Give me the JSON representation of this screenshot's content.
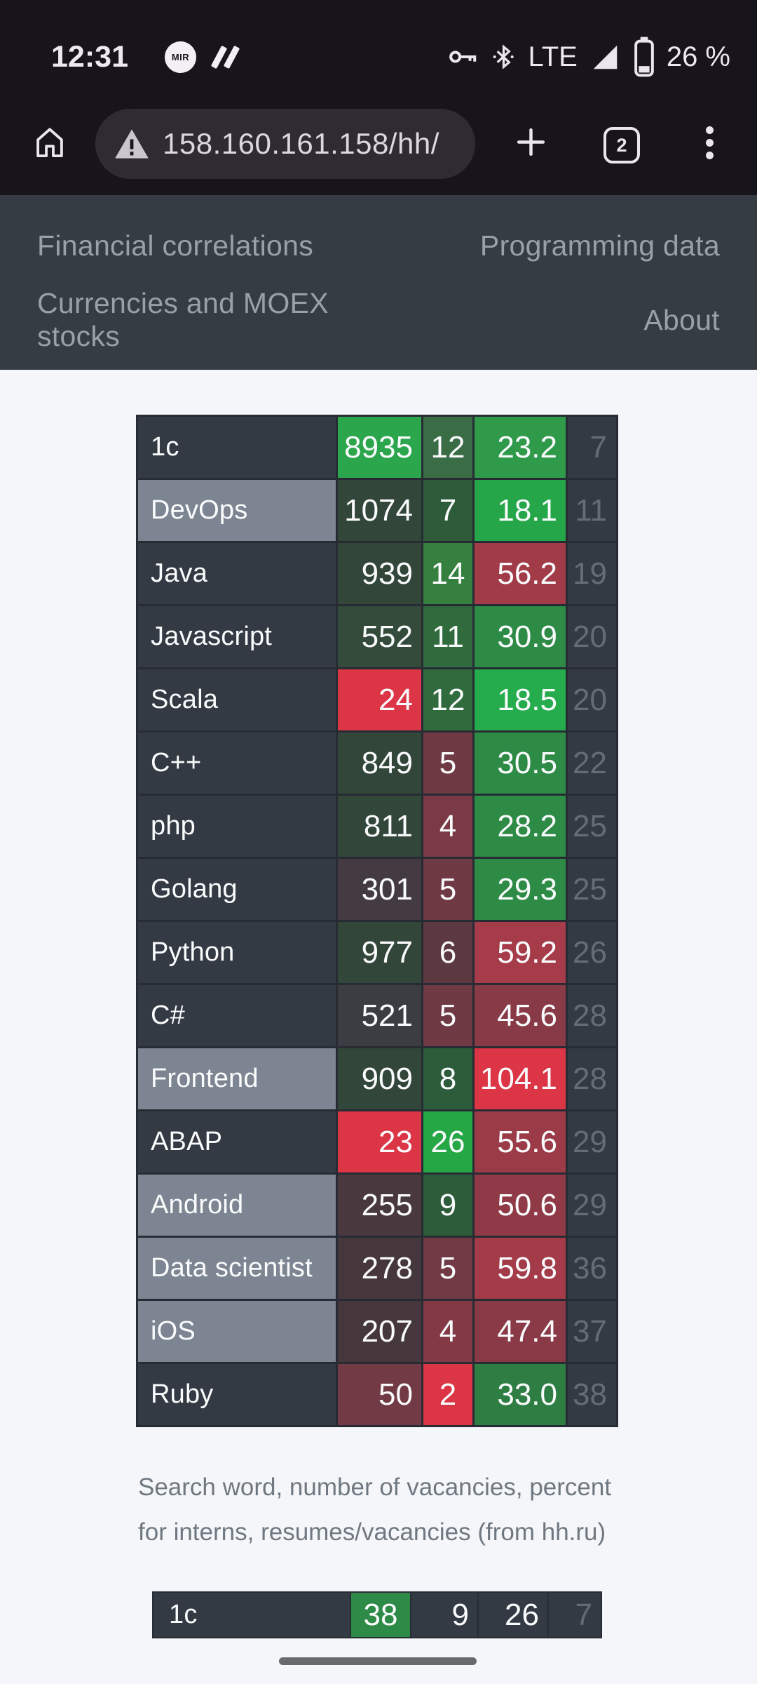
{
  "status_bar": {
    "time": "12:31",
    "mir_label": "MIR",
    "network": "LTE",
    "battery_percent": "26 %"
  },
  "browser": {
    "url": "158.160.161.158/hh/",
    "tab_count": "2"
  },
  "nav": {
    "items": [
      {
        "label": "Financial correlations"
      },
      {
        "label": "Programming data"
      },
      {
        "label": "Currencies and MOEX stocks"
      },
      {
        "label": "About"
      }
    ]
  },
  "colors": {
    "chrome_bg": "#17151B",
    "omnibox_bg": "#2F2B33",
    "nav_bg": "#363C43",
    "page_bg": "#F4F6F9",
    "cell_slate": "#343A43",
    "label_highlight": "#7C8591",
    "table_border": "#272C34",
    "bright_green": "#27A84A",
    "bright_red": "#DC3545",
    "rank_text": "#646D77"
  },
  "vacancies_table": {
    "caption_line1": "Search word, number of vacancies, percent",
    "caption_line2": "for interns, resumes/vacancies (from hh.ru)",
    "rows": [
      {
        "label": "1c",
        "highlighted": false,
        "vacancies": "8935",
        "vac_bg": "#2BA64D",
        "interns": "12",
        "int_bg": "#3A6C45",
        "ratio": "23.2",
        "ratio_bg": "#2F9A4A",
        "rank": "7"
      },
      {
        "label": "DevOps",
        "highlighted": true,
        "vacancies": "1074",
        "vac_bg": "#32463A",
        "interns": "7",
        "int_bg": "#2E5C3B",
        "ratio": "18.1",
        "ratio_bg": "#25A649",
        "rank": "11"
      },
      {
        "label": "Java",
        "highlighted": false,
        "vacancies": "939",
        "vac_bg": "#32463A",
        "interns": "14",
        "int_bg": "#35803F",
        "ratio": "56.2",
        "ratio_bg": "#A23B48",
        "rank": "19"
      },
      {
        "label": "Javascript",
        "highlighted": false,
        "vacancies": "552",
        "vac_bg": "#344B3C",
        "interns": "11",
        "int_bg": "#306B3E",
        "ratio": "30.9",
        "ratio_bg": "#2E8B46",
        "rank": "20"
      },
      {
        "label": "Scala",
        "highlighted": false,
        "vacancies": "24",
        "vac_bg": "#DC3545",
        "interns": "12",
        "int_bg": "#306B3E",
        "ratio": "18.5",
        "ratio_bg": "#25AC4D",
        "rank": "20"
      },
      {
        "label": "C++",
        "highlighted": false,
        "vacancies": "849",
        "vac_bg": "#32463A",
        "interns": "5",
        "int_bg": "#6F3A44",
        "ratio": "30.5",
        "ratio_bg": "#2E8B46",
        "rank": "22"
      },
      {
        "label": "php",
        "highlighted": false,
        "vacancies": "811",
        "vac_bg": "#32463A",
        "interns": "4",
        "int_bg": "#7A3A45",
        "ratio": "28.2",
        "ratio_bg": "#2E8B46",
        "rank": "25"
      },
      {
        "label": "Golang",
        "highlighted": false,
        "vacancies": "301",
        "vac_bg": "#433B41",
        "interns": "5",
        "int_bg": "#6F3A44",
        "ratio": "29.3",
        "ratio_bg": "#2E8B46",
        "rank": "25"
      },
      {
        "label": "Python",
        "highlighted": false,
        "vacancies": "977",
        "vac_bg": "#32463A",
        "interns": "6",
        "int_bg": "#5C3841",
        "ratio": "59.2",
        "ratio_bg": "#A63B49",
        "rank": "26"
      },
      {
        "label": "C#",
        "highlighted": false,
        "vacancies": "521",
        "vac_bg": "#3B3D43",
        "interns": "5",
        "int_bg": "#6F3A44",
        "ratio": "45.6",
        "ratio_bg": "#883A46",
        "rank": "28"
      },
      {
        "label": "Frontend",
        "highlighted": true,
        "vacancies": "909",
        "vac_bg": "#32463A",
        "interns": "8",
        "int_bg": "#2D5C3B",
        "ratio": "104.1",
        "ratio_bg": "#DC3545",
        "rank": "28"
      },
      {
        "label": "ABAP",
        "highlighted": false,
        "vacancies": "23",
        "vac_bg": "#DC3545",
        "interns": "26",
        "int_bg": "#26A746",
        "ratio": "55.6",
        "ratio_bg": "#9C3B48",
        "rank": "29"
      },
      {
        "label": "Android",
        "highlighted": true,
        "vacancies": "255",
        "vac_bg": "#49393F",
        "interns": "9",
        "int_bg": "#2D5C3B",
        "ratio": "50.6",
        "ratio_bg": "#8F3A46",
        "rank": "29"
      },
      {
        "label": "Data scientist",
        "highlighted": true,
        "vacancies": "278",
        "vac_bg": "#46373D",
        "interns": "5",
        "int_bg": "#713A44",
        "ratio": "59.8",
        "ratio_bg": "#A33B49",
        "rank": "36"
      },
      {
        "label": "iOS",
        "highlighted": true,
        "vacancies": "207",
        "vac_bg": "#46373D",
        "interns": "4",
        "int_bg": "#833A46",
        "ratio": "47.4",
        "ratio_bg": "#8A3A46",
        "rank": "37"
      },
      {
        "label": "Ruby",
        "highlighted": false,
        "vacancies": "50",
        "vac_bg": "#713A44",
        "interns": "2",
        "int_bg": "#DC3545",
        "ratio": "33.0",
        "ratio_bg": "#2E7E44",
        "rank": "38"
      }
    ]
  },
  "second_table": {
    "rows": [
      {
        "label": "1c",
        "cells": [
          {
            "value": "38",
            "bg": "#2E8B47",
            "align": "center",
            "muted": false
          },
          {
            "value": "9",
            "bg": "#343A43",
            "align": "right",
            "muted": false
          },
          {
            "value": "26",
            "bg": "#343A43",
            "align": "right",
            "muted": false
          },
          {
            "value": "7",
            "bg": "#343A43",
            "align": "right",
            "muted": true
          }
        ]
      }
    ]
  }
}
